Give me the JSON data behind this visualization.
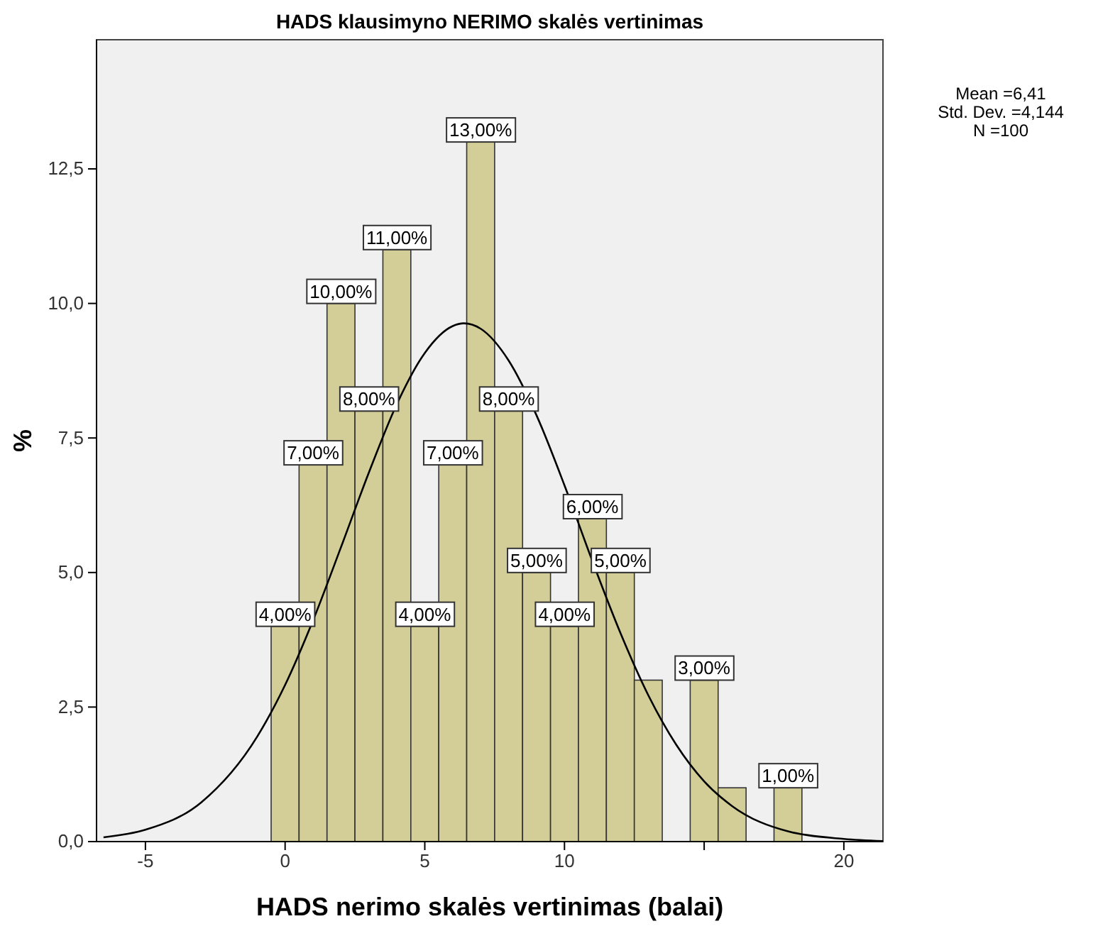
{
  "chart_data": {
    "type": "histogram",
    "title": "HADS klausimyno NERIMO skalės vertinimas",
    "xlabel": "HADS nerimo skalės vertinimas (balai)",
    "ylabel": "%",
    "annotations": [
      "Mean =6,41",
      "Std. Dev. =4,144",
      "N =100"
    ],
    "series": [
      {
        "color": "#d3cd98",
        "bins": [
          -0.5,
          0.5,
          1.5,
          2.5,
          3.5,
          4.5,
          5.5,
          6.5,
          7.5,
          8.5,
          9.5,
          10.5,
          11.5,
          12.5,
          13.5,
          14.5,
          15.5,
          16.5,
          17.5,
          18.5
        ],
        "values": [
          4,
          7,
          10,
          8,
          11,
          4,
          7,
          13,
          8,
          5,
          4,
          6,
          5,
          3,
          0,
          3,
          1,
          0,
          1
        ],
        "value_labels": [
          "4,00%",
          "7,00%",
          "10,00%",
          "8,00%",
          "11,00%",
          "4,00%",
          "7,00%",
          "13,00%",
          "8,00%",
          "5,00%",
          "4,00%",
          "6,00%",
          "5,00%",
          null,
          null,
          "3,00%",
          null,
          null,
          "1,00%"
        ]
      },
      {
        "type": "line",
        "color": "#000000",
        "x": [
          -6.5,
          -5,
          -3,
          -1,
          0,
          1,
          2,
          3,
          4,
          5,
          6,
          6.4,
          7,
          8,
          9,
          10,
          11,
          12,
          13,
          14,
          15,
          16,
          18,
          20,
          21.4
        ],
        "values": [
          0.08,
          0.22,
          0.73,
          1.95,
          2.91,
          4.11,
          5.47,
          6.86,
          8.13,
          9.08,
          9.58,
          9.63,
          9.53,
          8.94,
          7.92,
          6.62,
          5.21,
          3.88,
          2.72,
          1.8,
          1.12,
          0.66,
          0.19,
          0.05,
          0.01
        ]
      }
    ],
    "xlim": [
      -6.75,
      21.4
    ],
    "ylim": [
      0,
      14.9
    ],
    "xticks": [
      -5,
      0,
      5,
      10,
      {
        "value": 15,
        "label": null
      },
      20
    ],
    "yticks": [
      {
        "value": 0,
        "label": "0,0"
      },
      {
        "value": 2.5,
        "label": "2,5"
      },
      {
        "value": 5,
        "label": "5,0"
      },
      {
        "value": 7.5,
        "label": "7,5"
      },
      {
        "value": 10,
        "label": "10,0"
      },
      {
        "value": 12.5,
        "label": "12,5"
      }
    ]
  }
}
